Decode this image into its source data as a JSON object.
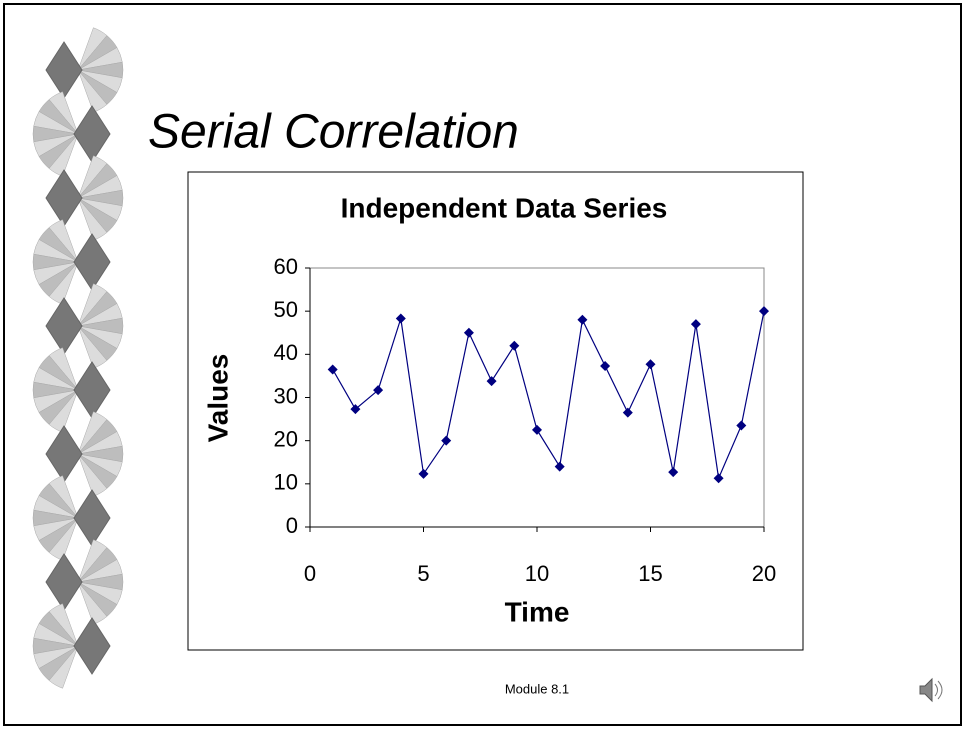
{
  "slide": {
    "title": "Serial Correlation",
    "footer": "Module 8.1"
  },
  "chart_data": {
    "type": "line",
    "title": "Independent Data Series",
    "x_label": "Time",
    "y_label": "Values",
    "x": [
      1,
      2,
      3,
      4,
      5,
      6,
      7,
      8,
      9,
      10,
      11,
      12,
      13,
      14,
      15,
      16,
      17,
      18,
      19,
      20
    ],
    "values": [
      36.5,
      27.3,
      31.7,
      48.3,
      12.3,
      20,
      45,
      33.8,
      42,
      22.5,
      14,
      48,
      37.3,
      26.5,
      37.7,
      12.7,
      47,
      11.3,
      23.5,
      50
    ],
    "color": "#000080",
    "xlim": [
      0,
      20
    ],
    "xticks": [
      0,
      5,
      10,
      15,
      20
    ],
    "ylim": [
      0,
      60
    ],
    "yticks": [
      0,
      10,
      20,
      30,
      40,
      50,
      60
    ],
    "grid": false
  }
}
